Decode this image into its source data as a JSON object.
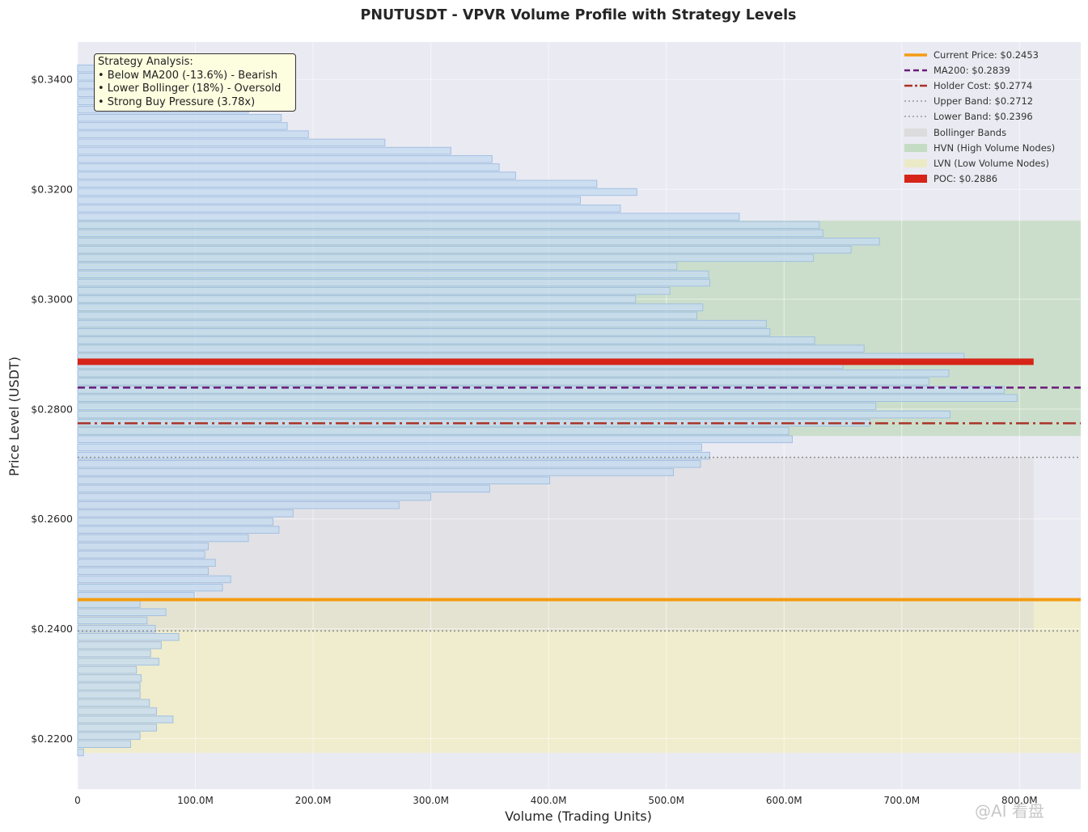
{
  "chart_data": {
    "type": "bar",
    "orientation": "horizontal",
    "title": "PNUTUSDT - VPVR Volume Profile with Strategy Levels",
    "xlabel": "Volume (Trading Units)",
    "ylabel": "Price Level (USDT)",
    "xlim": [
      0,
      852
    ],
    "ylim": [
      0.2108,
      0.3468
    ],
    "x_tick_labels": [
      "0",
      "100.0M",
      "200.0M",
      "300.0M",
      "400.0M",
      "500.0M",
      "600.0M",
      "700.0M",
      "800.0M"
    ],
    "x_tick_values": [
      0,
      100,
      200,
      300,
      400,
      500,
      600,
      700,
      800
    ],
    "y_tick_labels": [
      "$0.2200",
      "$0.2400",
      "$0.2600",
      "$0.2800",
      "$0.3000",
      "$0.3200",
      "$0.3400"
    ],
    "y_tick_values": [
      0.22,
      0.24,
      0.26,
      0.28,
      0.3,
      0.32,
      0.34
    ],
    "grid": true,
    "legend_position": "top-right",
    "bin_height": 0.0015,
    "bars": [
      {
        "price": 0.2175,
        "volume": 5
      },
      {
        "price": 0.219,
        "volume": 45
      },
      {
        "price": 0.2205,
        "volume": 53
      },
      {
        "price": 0.222,
        "volume": 67
      },
      {
        "price": 0.2235,
        "volume": 81
      },
      {
        "price": 0.225,
        "volume": 67
      },
      {
        "price": 0.2265,
        "volume": 61
      },
      {
        "price": 0.228,
        "volume": 53
      },
      {
        "price": 0.2295,
        "volume": 53
      },
      {
        "price": 0.231,
        "volume": 54
      },
      {
        "price": 0.2325,
        "volume": 50
      },
      {
        "price": 0.234,
        "volume": 69
      },
      {
        "price": 0.2355,
        "volume": 62
      },
      {
        "price": 0.237,
        "volume": 71
      },
      {
        "price": 0.2385,
        "volume": 86
      },
      {
        "price": 0.24,
        "volume": 66
      },
      {
        "price": 0.2415,
        "volume": 59
      },
      {
        "price": 0.243,
        "volume": 75
      },
      {
        "price": 0.2445,
        "volume": 53
      },
      {
        "price": 0.246,
        "volume": 99
      },
      {
        "price": 0.2475,
        "volume": 123
      },
      {
        "price": 0.249,
        "volume": 130
      },
      {
        "price": 0.2505,
        "volume": 111
      },
      {
        "price": 0.252,
        "volume": 117
      },
      {
        "price": 0.2535,
        "volume": 108
      },
      {
        "price": 0.255,
        "volume": 111
      },
      {
        "price": 0.2565,
        "volume": 145
      },
      {
        "price": 0.258,
        "volume": 171
      },
      {
        "price": 0.2595,
        "volume": 166
      },
      {
        "price": 0.261,
        "volume": 183
      },
      {
        "price": 0.2625,
        "volume": 273
      },
      {
        "price": 0.264,
        "volume": 300
      },
      {
        "price": 0.2655,
        "volume": 350
      },
      {
        "price": 0.267,
        "volume": 401
      },
      {
        "price": 0.2685,
        "volume": 506
      },
      {
        "price": 0.27,
        "volume": 529
      },
      {
        "price": 0.2715,
        "volume": 537
      },
      {
        "price": 0.273,
        "volume": 530
      },
      {
        "price": 0.2745,
        "volume": 607
      },
      {
        "price": 0.276,
        "volume": 604
      },
      {
        "price": 0.2775,
        "volume": 673
      },
      {
        "price": 0.279,
        "volume": 741
      },
      {
        "price": 0.2805,
        "volume": 678
      },
      {
        "price": 0.282,
        "volume": 798
      },
      {
        "price": 0.2835,
        "volume": 787
      },
      {
        "price": 0.285,
        "volume": 723
      },
      {
        "price": 0.2865,
        "volume": 740
      },
      {
        "price": 0.288,
        "volume": 650
      },
      {
        "price": 0.2895,
        "volume": 753
      },
      {
        "price": 0.291,
        "volume": 668
      },
      {
        "price": 0.2925,
        "volume": 626
      },
      {
        "price": 0.294,
        "volume": 588
      },
      {
        "price": 0.2955,
        "volume": 585
      },
      {
        "price": 0.297,
        "volume": 526
      },
      {
        "price": 0.2985,
        "volume": 531
      },
      {
        "price": 0.3,
        "volume": 474
      },
      {
        "price": 0.3015,
        "volume": 503
      },
      {
        "price": 0.303,
        "volume": 537
      },
      {
        "price": 0.3045,
        "volume": 536
      },
      {
        "price": 0.306,
        "volume": 509
      },
      {
        "price": 0.3075,
        "volume": 625
      },
      {
        "price": 0.309,
        "volume": 657
      },
      {
        "price": 0.3105,
        "volume": 681
      },
      {
        "price": 0.312,
        "volume": 633
      },
      {
        "price": 0.3135,
        "volume": 630
      },
      {
        "price": 0.315,
        "volume": 562
      },
      {
        "price": 0.3165,
        "volume": 461
      },
      {
        "price": 0.318,
        "volume": 427
      },
      {
        "price": 0.3195,
        "volume": 475
      },
      {
        "price": 0.321,
        "volume": 441
      },
      {
        "price": 0.3225,
        "volume": 372
      },
      {
        "price": 0.324,
        "volume": 358
      },
      {
        "price": 0.3255,
        "volume": 352
      },
      {
        "price": 0.327,
        "volume": 317
      },
      {
        "price": 0.3285,
        "volume": 261
      },
      {
        "price": 0.33,
        "volume": 196
      },
      {
        "price": 0.3315,
        "volume": 178
      },
      {
        "price": 0.333,
        "volume": 173
      },
      {
        "price": 0.3345,
        "volume": 145
      },
      {
        "price": 0.336,
        "volume": 140
      },
      {
        "price": 0.3375,
        "volume": 125
      },
      {
        "price": 0.339,
        "volume": 110
      },
      {
        "price": 0.3405,
        "volume": 80
      },
      {
        "price": 0.342,
        "volume": 60
      }
    ],
    "levels": {
      "current_price": 0.2453,
      "ma200": 0.2839,
      "holder_cost": 0.2774,
      "upper_band": 0.2712,
      "lower_band": 0.2396,
      "poc": 0.2886,
      "poc_volume": 812
    },
    "zones": {
      "hvn": [
        0.2751,
        0.3143
      ],
      "lvn": [
        0.2174,
        0.2453
      ],
      "bollinger": [
        0.2396,
        0.2712
      ],
      "bollinger_volume_extent": 812
    },
    "legend": [
      {
        "label": "Current Price: $0.2453",
        "color": "#f39c12",
        "style": "solid-thick"
      },
      {
        "label": "MA200: $0.2839",
        "color": "#6a1b7a",
        "style": "dashed"
      },
      {
        "label": "Holder Cost: $0.2774",
        "color": "#a93226",
        "style": "dashdot"
      },
      {
        "label": "Upper Band: $0.2712",
        "color": "#999999",
        "style": "dotted"
      },
      {
        "label": "Lower Band: $0.2396",
        "color": "#999999",
        "style": "dotted"
      },
      {
        "label": "Bollinger Bands",
        "color": "#dcdcdc",
        "style": "patch"
      },
      {
        "label": "HVN (High Volume Nodes)",
        "color": "#c3dcc3",
        "style": "patch"
      },
      {
        "label": "LVN (Low Volume Nodes)",
        "color": "#eceac6",
        "style": "patch"
      },
      {
        "label": "POC: $0.2886",
        "color": "#d62418",
        "style": "patch"
      }
    ],
    "annotations": [
      "Strategy Analysis:",
      "• Below MA200 (-13.6%) - Bearish",
      "• Lower Bollinger (18%) - Oversold",
      "• Strong Buy Pressure (3.78x)"
    ]
  },
  "colors": {
    "plot_bg": "#eaeaf2",
    "bar_fill": "#c5dbf0",
    "bar_edge": "#9dbce0",
    "grid": "#ffffff"
  },
  "watermark": "@AI 看盘"
}
